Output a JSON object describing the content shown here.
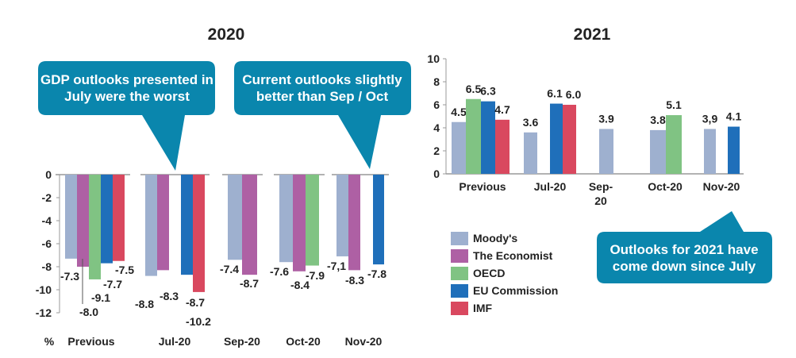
{
  "colors": {
    "Moody's": "#9eb0cf",
    "The Economist": "#ae60a4",
    "OECD": "#80c383",
    "EU Commission": "#1f6fba",
    "IMF": "#d9485f",
    "callout": "#0a86ad"
  },
  "legend": {
    "placement": "bottom-center",
    "items": [
      "Moody's",
      "The Economist",
      "OECD",
      "EU Commission",
      "IMF"
    ]
  },
  "callouts": {
    "c1": {
      "line1": "GDP outlooks presented in",
      "line2": "July were the worst"
    },
    "c2": {
      "line1": "Current outlooks slightly",
      "line2": "better than Sep / Oct"
    },
    "c3": {
      "line1": "Outlooks for 2021 have",
      "line2": "come down since July"
    }
  },
  "chart_data": [
    {
      "type": "bar",
      "title": "2020",
      "ylabel": "%",
      "ylim": [
        -12,
        0
      ],
      "yticks": [
        "0",
        "-2",
        "-4",
        "-6",
        "-8",
        "-10",
        "-12"
      ],
      "categories": [
        "Previous",
        "Jul-20",
        "Sep-20",
        "Oct-20",
        "Nov-20"
      ],
      "grid": false,
      "series": [
        {
          "name": "Moody's",
          "values": [
            -7.3,
            -8.8,
            -7.4,
            -7.6,
            -7.1
          ],
          "labels": [
            "-7.3",
            "-8.8",
            "-7.4",
            "-7.6",
            "-7,1"
          ]
        },
        {
          "name": "The Economist",
          "values": [
            -8.0,
            -8.3,
            -8.7,
            -8.4,
            -8.3
          ],
          "labels": [
            "-8.0",
            "-8.3",
            "-8.7",
            "-8.4",
            "-8.3"
          ]
        },
        {
          "name": "OECD",
          "values": [
            -9.1,
            null,
            null,
            -7.9,
            null
          ],
          "labels": [
            "-9.1",
            null,
            null,
            "-7.9",
            null
          ]
        },
        {
          "name": "EU Commission",
          "values": [
            -7.7,
            -8.7,
            null,
            null,
            -7.8
          ],
          "labels": [
            "-7.7",
            "-8.7",
            null,
            null,
            "-7.8"
          ]
        },
        {
          "name": "IMF",
          "values": [
            -7.5,
            -10.2,
            null,
            null,
            null
          ],
          "labels": [
            "-7.5",
            "-10.2",
            null,
            null,
            null
          ]
        }
      ]
    },
    {
      "type": "bar",
      "title": "2021",
      "ylim": [
        0,
        10
      ],
      "yticks": [
        "0",
        "2",
        "4",
        "6",
        "8",
        "10"
      ],
      "categories": [
        "Previous",
        "Jul-20",
        "Sep-20",
        "Oct-20",
        "Nov-20"
      ],
      "category_labels": [
        [
          "Previous"
        ],
        [
          "Jul-20"
        ],
        [
          "Sep-",
          "20"
        ],
        [
          "Oct-20"
        ],
        [
          "Nov-20"
        ]
      ],
      "grid": false,
      "series": [
        {
          "name": "Moody's",
          "values": [
            4.5,
            3.6,
            3.9,
            3.8,
            3.9
          ],
          "labels": [
            "4.5",
            "3.6",
            "3.9",
            "3.8",
            "3,9"
          ]
        },
        {
          "name": "The Economist",
          "values": [
            null,
            null,
            null,
            null,
            null
          ],
          "labels": [
            null,
            null,
            null,
            null,
            null
          ]
        },
        {
          "name": "OECD",
          "values": [
            6.5,
            null,
            null,
            5.1,
            null
          ],
          "labels": [
            "6.5",
            null,
            null,
            "5.1",
            null
          ]
        },
        {
          "name": "EU Commission",
          "values": [
            6.3,
            6.1,
            null,
            null,
            4.1
          ],
          "labels": [
            "6.3",
            "6.1",
            null,
            null,
            "4.1"
          ]
        },
        {
          "name": "IMF",
          "values": [
            4.7,
            6.0,
            null,
            null,
            null
          ],
          "labels": [
            "4.7",
            "6.0",
            null,
            null,
            null
          ]
        }
      ]
    }
  ]
}
